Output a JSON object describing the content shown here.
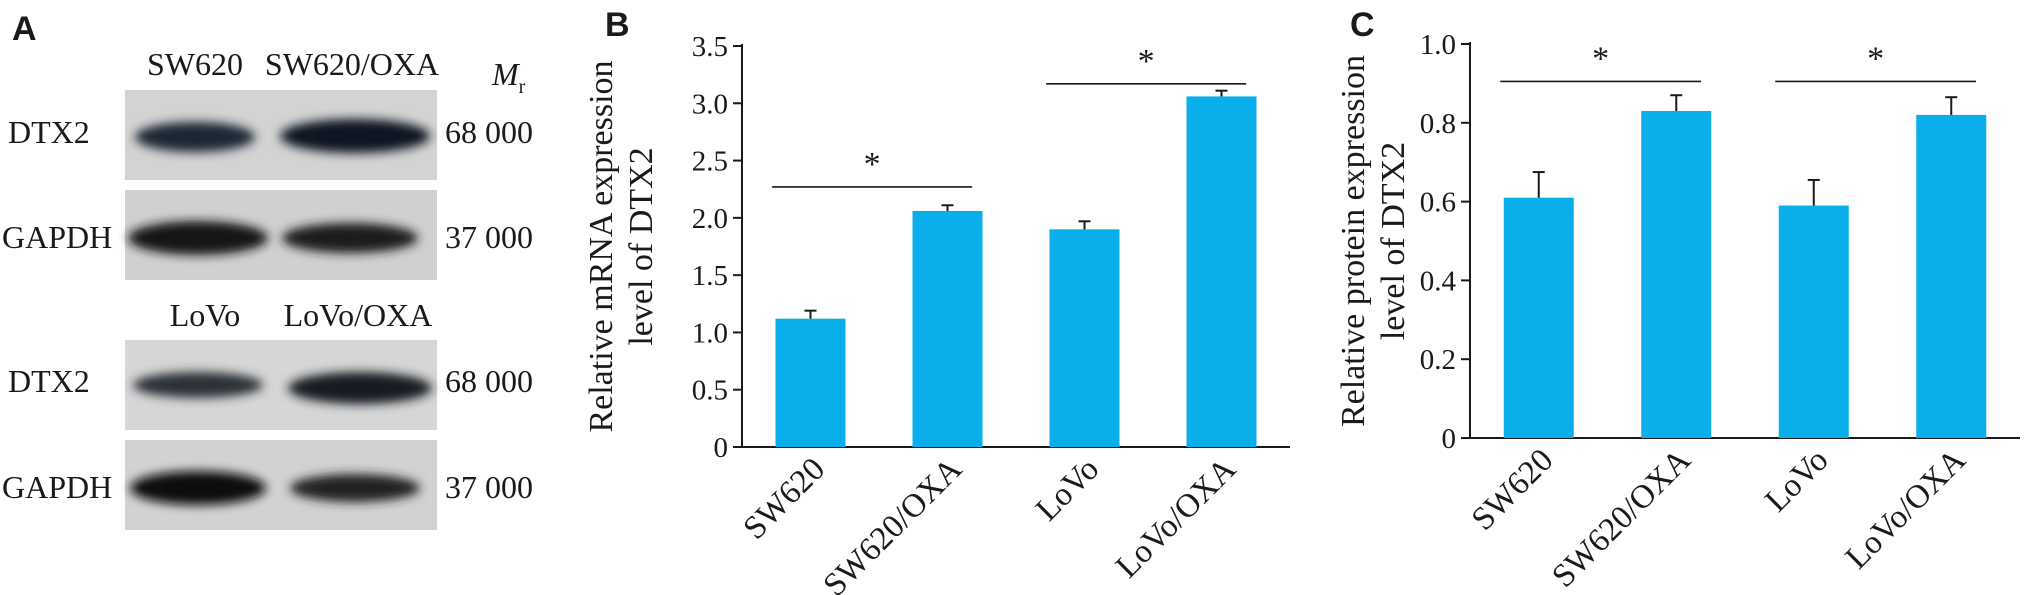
{
  "panels": {
    "a": "A",
    "b": "B",
    "c": "C"
  },
  "blot": {
    "mr_label": "M",
    "mr_sub": "r",
    "groups": [
      {
        "lanes": [
          "SW620",
          "SW620/OXA"
        ],
        "rows": [
          {
            "protein": "DTX2",
            "mw": "68 000"
          },
          {
            "protein": "GAPDH",
            "mw": "37 000"
          }
        ]
      },
      {
        "lanes": [
          "LoVo",
          "LoVo/OXA"
        ],
        "rows": [
          {
            "protein": "DTX2",
            "mw": "68 000"
          },
          {
            "protein": "GAPDH",
            "mw": "37 000"
          }
        ]
      }
    ]
  },
  "chart_data": [
    {
      "type": "bar",
      "panel": "B",
      "categories": [
        "SW620",
        "SW620/OXA",
        "LoVo",
        "LoVo/OXA"
      ],
      "values": [
        1.12,
        2.06,
        1.9,
        3.06
      ],
      "errors": [
        0.07,
        0.05,
        0.07,
        0.05
      ],
      "ylabel_lines": [
        "Relative mRNA expression",
        "level of DTX2"
      ],
      "ylim": [
        0,
        3.5
      ],
      "yticks": [
        "0",
        "0.5",
        "1.0",
        "1.5",
        "2.0",
        "2.5",
        "3.0",
        "3.5"
      ],
      "significance": [
        {
          "from": 0,
          "to": 1,
          "label": "*",
          "y": 2.27
        },
        {
          "from": 2,
          "to": 3,
          "label": "*",
          "y": 3.17
        }
      ],
      "bar_color": "#0aaeea"
    },
    {
      "type": "bar",
      "panel": "C",
      "categories": [
        "SW620",
        "SW620/OXA",
        "LoVo",
        "LoVo/OXA"
      ],
      "values": [
        0.61,
        0.83,
        0.59,
        0.82
      ],
      "errors": [
        0.065,
        0.04,
        0.065,
        0.045
      ],
      "ylabel_lines": [
        "Relative protein expression",
        "level of DTX2"
      ],
      "ylim": [
        0,
        1.0
      ],
      "yticks": [
        "0",
        "0.2",
        "0.4",
        "0.6",
        "0.8",
        "1.0"
      ],
      "significance": [
        {
          "from": 0,
          "to": 1,
          "label": "*",
          "y": 0.905
        },
        {
          "from": 2,
          "to": 3,
          "label": "*",
          "y": 0.905
        }
      ],
      "bar_color": "#0aaeea"
    }
  ]
}
